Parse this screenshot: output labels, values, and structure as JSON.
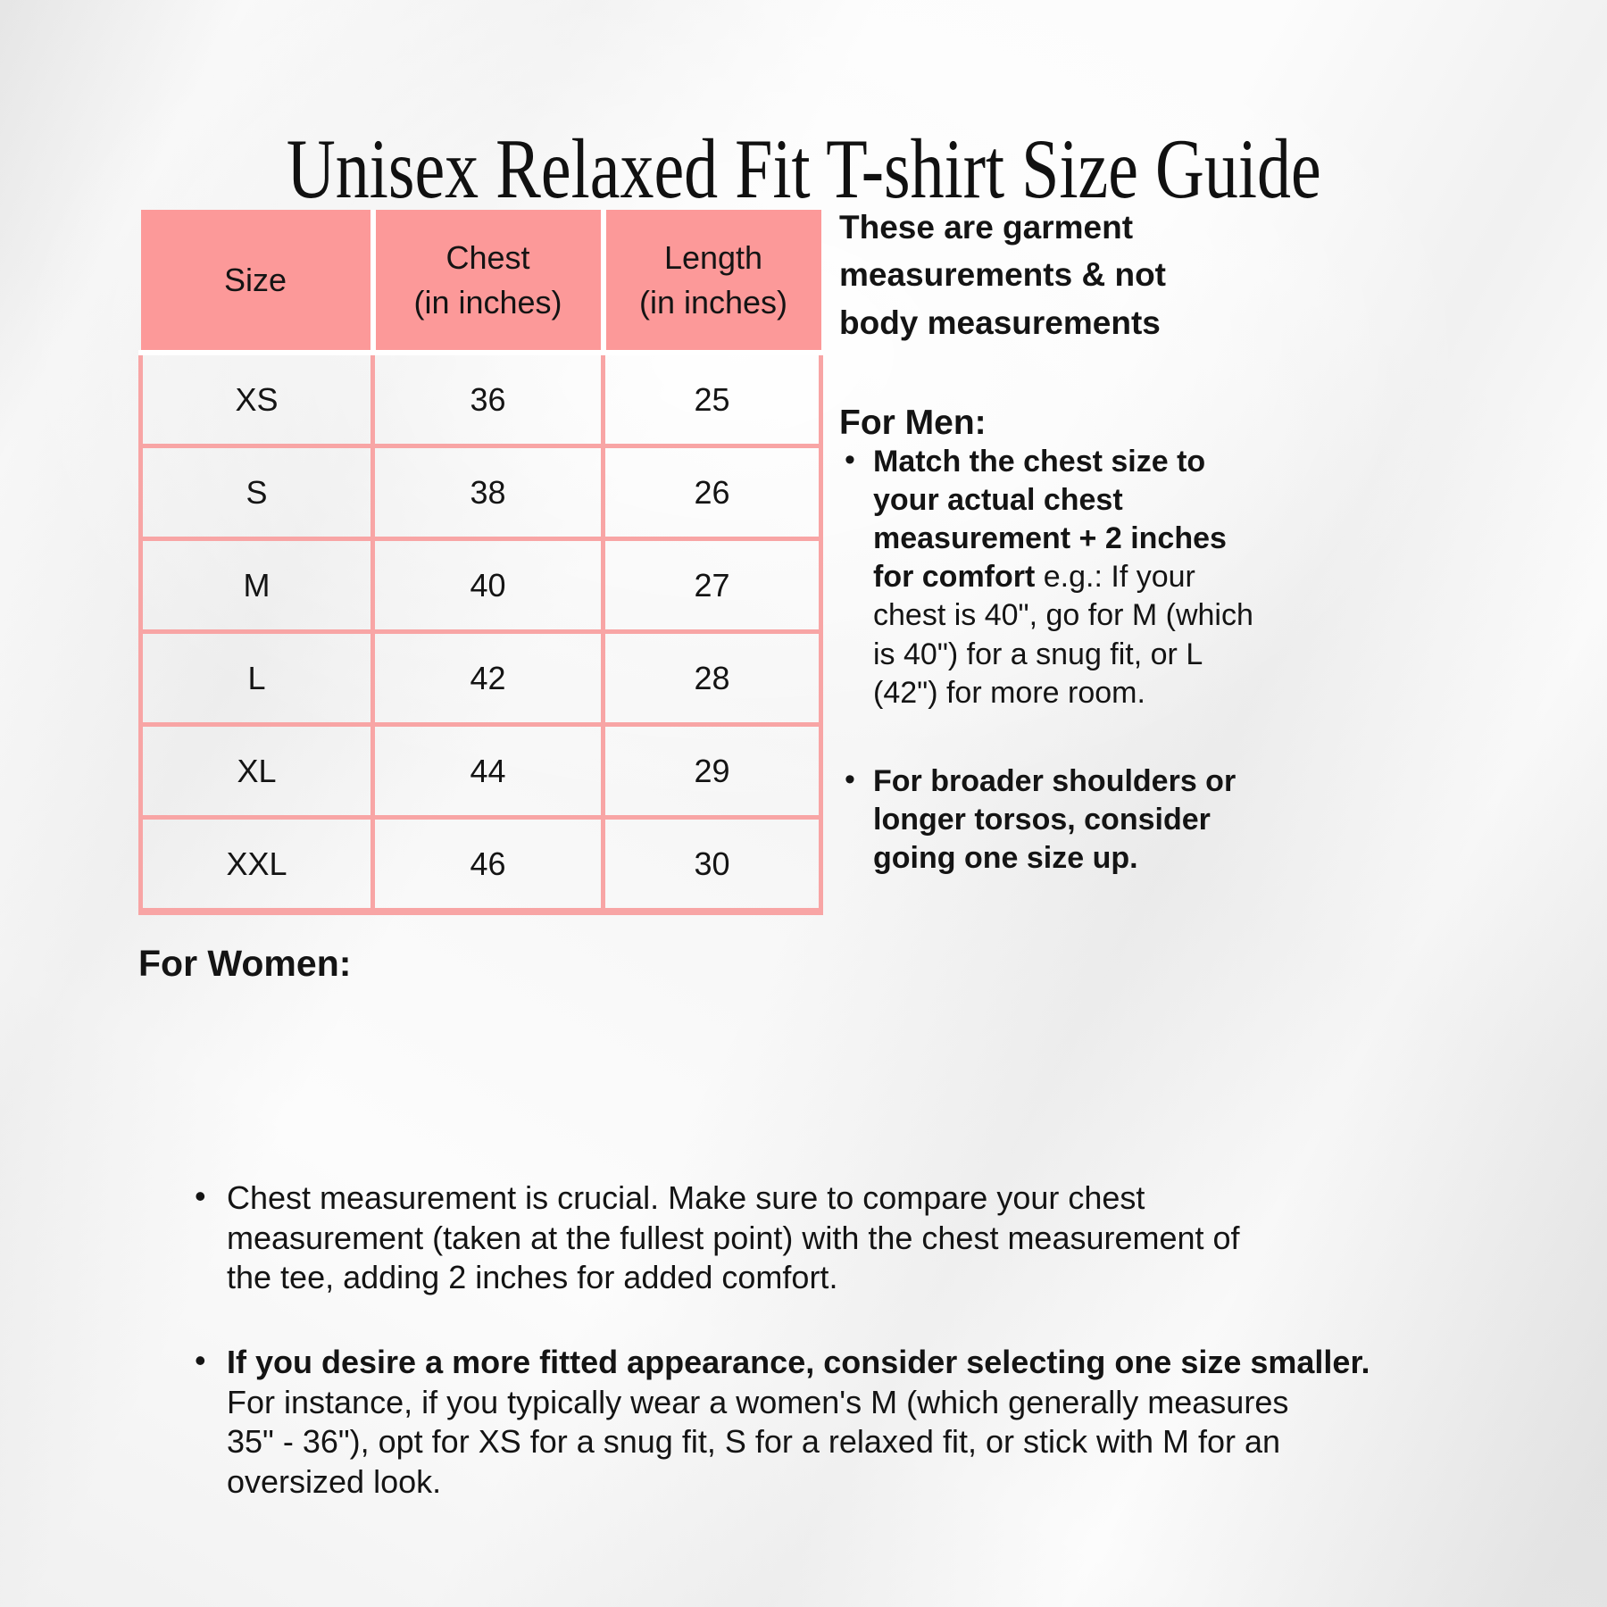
{
  "page": {
    "title": "Unisex Relaxed Fit T-shirt Size Guide"
  },
  "glyphs": {
    "bullet": "•"
  },
  "colors": {
    "header_pink": "#FC9999",
    "border_pink": "#F8A5A5",
    "separator_white": "#FFFFFF",
    "text_black": "#141414"
  },
  "size_table": {
    "headers": [
      {
        "line1": "Size",
        "line2": ""
      },
      {
        "line1": "Chest",
        "line2": "(in inches)"
      },
      {
        "line1": "Length",
        "line2": "(in inches)"
      }
    ],
    "rows": [
      {
        "size": "XS",
        "chest": "36",
        "length": "25"
      },
      {
        "size": "S",
        "chest": "38",
        "length": "26"
      },
      {
        "size": "M",
        "chest": "40",
        "length": "27"
      },
      {
        "size": "L",
        "chest": "42",
        "length": "28"
      },
      {
        "size": "XL",
        "chest": "44",
        "length": "29"
      },
      {
        "size": "XXL",
        "chest": "46",
        "length": "30"
      }
    ]
  },
  "note": "These are garment\nmeasurements & not\nbody measurements",
  "men": {
    "heading": "For Men:",
    "bullets": [
      {
        "bold": "Match the chest size to\nyour actual chest\nmeasurement + 2 inches\nfor comfort",
        "regular": " e.g.: If your\nchest is 40\", go for M (which\nis 40\") for a snug fit, or L\n(42\") for more room."
      },
      {
        "bold": "For broader shoulders or\nlonger torsos, consider\ngoing one size up.",
        "regular": ""
      }
    ]
  },
  "women": {
    "heading": "For Women:",
    "bullets": [
      {
        "bold": "",
        "regular": "Chest measurement is crucial. Make sure to compare your chest\nmeasurement (taken at the fullest point) with the chest measurement of\nthe tee, adding 2 inches for added comfort."
      },
      {
        "bold": "If you desire a more fitted appearance, consider selecting one size smaller.",
        "regular": "\nFor instance, if you typically wear a women's M (which generally measures\n35\" - 36\"), opt for XS for a snug fit, S for a relaxed fit, or stick with M for an\noversized look."
      }
    ]
  }
}
